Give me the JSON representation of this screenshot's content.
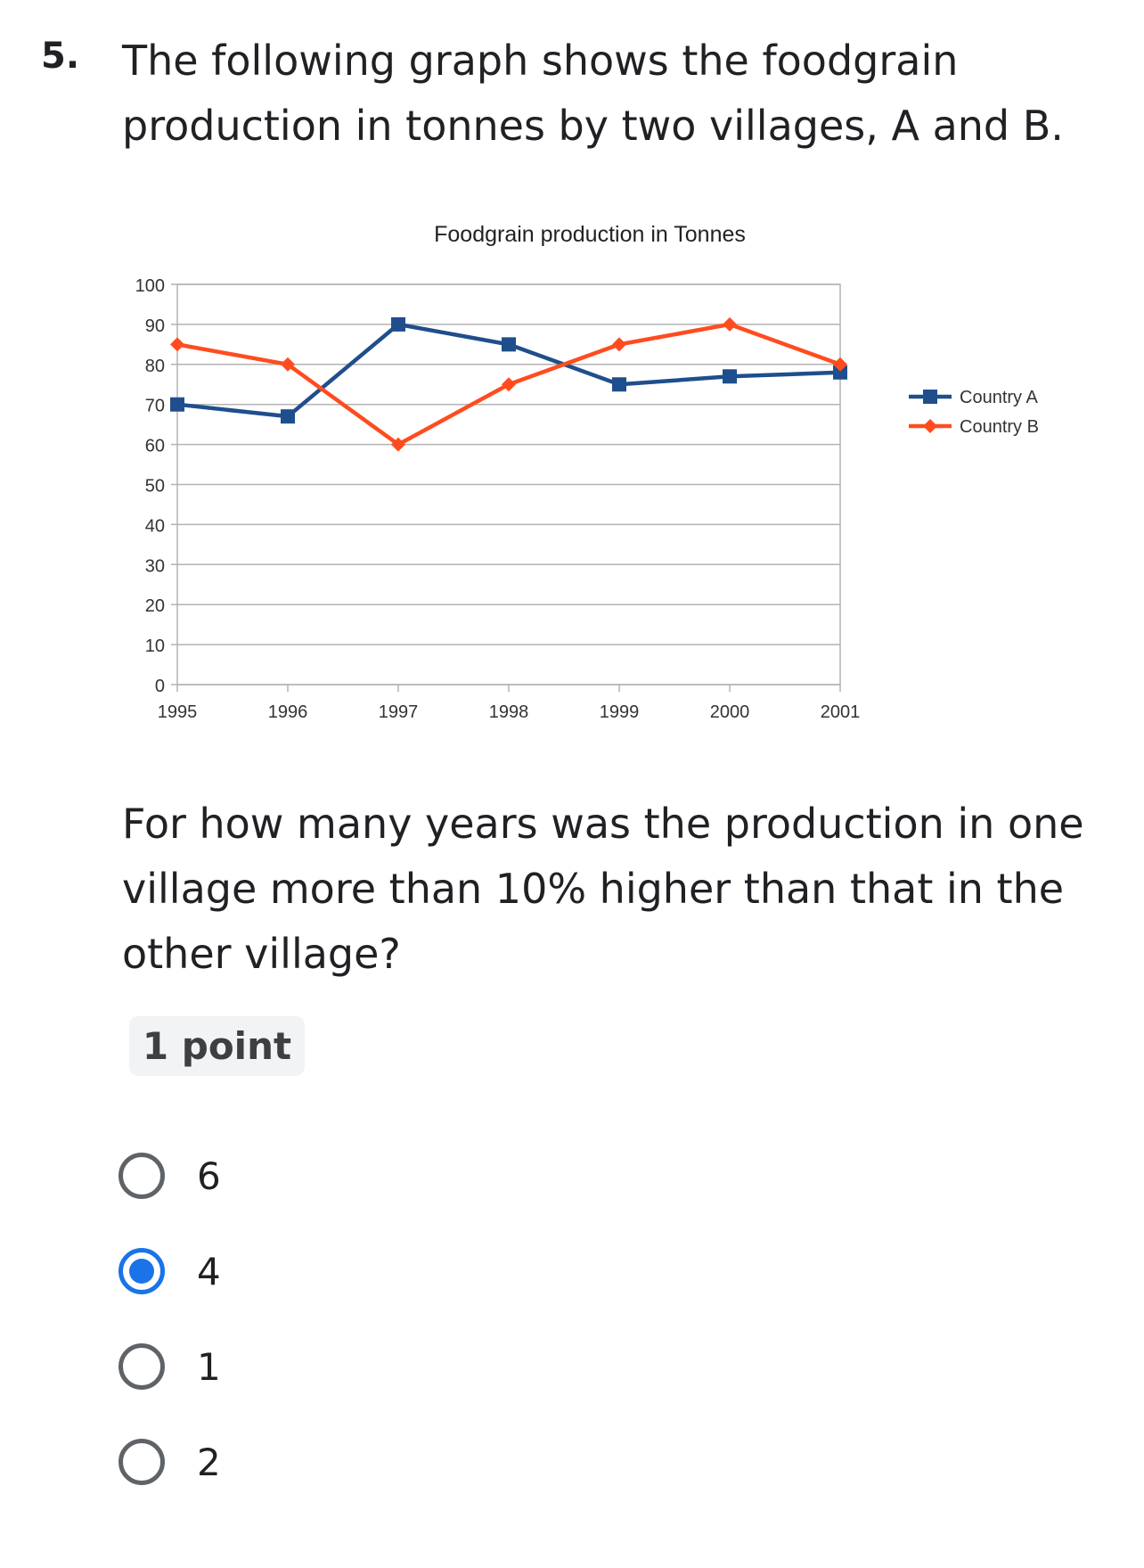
{
  "question": {
    "number": "5.",
    "text": "The following graph shows the foodgrain production in tonnes by two villages, A and B.",
    "prompt": "For how many years was the production in one village more than 10% higher than that in the other village?",
    "points": "1 point"
  },
  "options": [
    {
      "label": "6",
      "selected": false
    },
    {
      "label": "4",
      "selected": true
    },
    {
      "label": "1",
      "selected": false
    },
    {
      "label": "2",
      "selected": false
    }
  ],
  "colors": {
    "country_a": "#1f4e8c",
    "country_b": "#ff4c1f",
    "selected": "#1a73e8"
  },
  "chart_data": {
    "type": "line",
    "title": "Foodgrain production in Tonnes",
    "xlabel": "",
    "ylabel": "",
    "categories": [
      "1995",
      "1996",
      "1997",
      "1998",
      "1999",
      "2000",
      "2001"
    ],
    "ylim": [
      0,
      100
    ],
    "yticks": [
      "0",
      "10",
      "20",
      "30",
      "40",
      "50",
      "60",
      "70",
      "80",
      "90",
      "100"
    ],
    "grid": true,
    "legend_position": "right",
    "series": [
      {
        "name": "Country A",
        "marker": "square",
        "values": [
          70,
          67,
          90,
          85,
          75,
          77,
          78
        ]
      },
      {
        "name": "Country B",
        "marker": "diamond",
        "values": [
          85,
          80,
          60,
          75,
          85,
          90,
          80
        ]
      }
    ]
  }
}
